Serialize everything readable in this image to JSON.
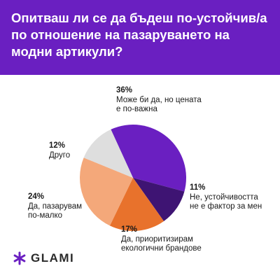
{
  "header": {
    "title": "Опитваш ли се да бъдеш по-устойчив/а по отношение на пазаруването на модни артикули?"
  },
  "chart_data": {
    "type": "pie",
    "title": "Опитваш ли се да бъдеш по-устойчив/а по отношение на пазаруването на модни артикули?",
    "slices": [
      {
        "label": "Може би да, но цената\nе по-важна",
        "value": 36,
        "display": "36%",
        "color": "#6a1fc1"
      },
      {
        "label": "Не, устойчивостта\nне е фактор за мен",
        "value": 11,
        "display": "11%",
        "color": "#3e1473"
      },
      {
        "label": "Да, приоритизирам\nекологични брандове",
        "value": 17,
        "display": "17%",
        "color": "#e8722c"
      },
      {
        "label": "Да, пазарувам\nпо-малко",
        "value": 24,
        "display": "24%",
        "color": "#f4a87a"
      },
      {
        "label": "Друго",
        "value": 12,
        "display": "12%",
        "color": "#dedede"
      }
    ]
  },
  "brand": {
    "name": "GLAMI",
    "icon": "asterisk-logo-icon",
    "color": "#6a1fc1"
  }
}
